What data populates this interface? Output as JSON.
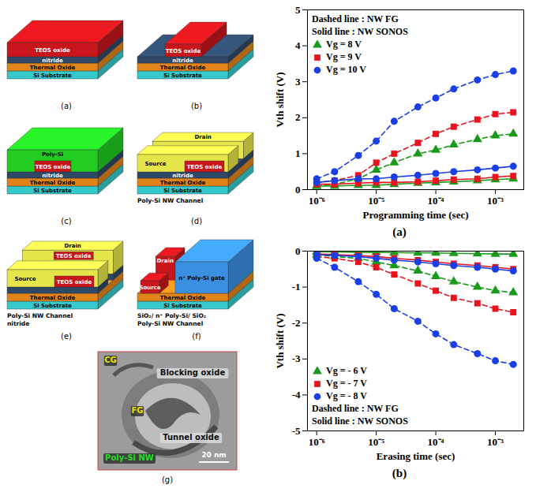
{
  "diagram": {
    "panels": [
      {
        "caption": "(a)",
        "layers": [
          {
            "text": "Si Substrate",
            "color": "#35c9cc"
          },
          {
            "text": "Thermal Oxide",
            "color": "#e0841a"
          },
          {
            "text": "nitride",
            "color": "#2e4868"
          },
          {
            "text": "TEOS oxide",
            "color": "#c8161c"
          }
        ],
        "blocks": [],
        "callouts": []
      },
      {
        "caption": "(b)",
        "layers": [
          {
            "text": "Si Substrate",
            "color": "#35c9cc"
          },
          {
            "text": "Thermal Oxide",
            "color": "#e0841a"
          },
          {
            "text": "nitride",
            "color": "#2e4868"
          }
        ],
        "blocks": [
          {
            "text": "TEOS oxide",
            "color": "#c8161c"
          }
        ],
        "callouts": []
      },
      {
        "caption": "(c)",
        "layers": [
          {
            "text": "Si Substrate",
            "color": "#35c9cc"
          },
          {
            "text": "Thermal Oxide",
            "color": "#e0841a"
          },
          {
            "text": "nitride",
            "color": "#2e4868"
          }
        ],
        "blocks": [
          {
            "text": "Poly-Si",
            "color": "#22cc22"
          },
          {
            "text": "TEOS oxide",
            "color": "#c8161c"
          }
        ],
        "callouts": []
      },
      {
        "caption": "(d)",
        "layers": [
          {
            "text": "Si Substrate",
            "color": "#35c9cc"
          },
          {
            "text": "Thermal Oxide",
            "color": "#e0841a"
          },
          {
            "text": "nitride",
            "color": "#2e4868"
          }
        ],
        "blocks": [
          {
            "text": "Drain",
            "color": "#e6e64a"
          },
          {
            "text": "Source",
            "color": "#e6e64a"
          },
          {
            "text": "TEOS oxide",
            "color": "#c8161c"
          }
        ],
        "callouts": [
          "Poly-Si NW Channel"
        ]
      },
      {
        "caption": "(e)",
        "layers": [
          {
            "text": "Si Substrate",
            "color": "#35c9cc"
          },
          {
            "text": "Thermal Oxide",
            "color": "#e0841a"
          }
        ],
        "blocks": [
          {
            "text": "Drain",
            "color": "#e6e64a"
          },
          {
            "text": "TEOS oxide",
            "color": "#c8161c"
          },
          {
            "text": "Source",
            "color": "#e6e64a"
          },
          {
            "text": "TEOS oxide",
            "color": "#c8161c"
          }
        ],
        "callouts": [
          "Poly-Si NW Channel",
          "nitride"
        ]
      },
      {
        "caption": "(f)",
        "layers": [
          {
            "text": "Si Substrate",
            "color": "#35c9cc"
          },
          {
            "text": "Thermal Oxide",
            "color": "#e0841a"
          }
        ],
        "blocks": [
          {
            "text": "n⁺ Poly-Si gate",
            "color": "#3a8fe0"
          },
          {
            "text": "Drain",
            "color": "#c8161c"
          },
          {
            "text": "Source",
            "color": "#c8161c"
          }
        ],
        "callouts": [
          "SiO₂/ n⁺ Poly-Si/ SiO₂",
          "Poly-Si NW Channel"
        ]
      }
    ],
    "tem_image": {
      "caption": "(g)",
      "labels": [
        {
          "text": "CG",
          "color": "#e8e000"
        },
        {
          "text": "Blocking oxide",
          "color": "#111111"
        },
        {
          "text": "FG",
          "color": "#e8e000"
        },
        {
          "text": "Tunnel oxide",
          "color": "#111111"
        },
        {
          "text": "Poly-Si NW",
          "color": "#22dd22"
        }
      ],
      "scale_bar": "20 nm"
    }
  },
  "chart_data": [
    {
      "type": "line",
      "caption": "(a)",
      "x_label": "Programming time (sec)",
      "y_label": "Vth shift (V)",
      "log": "x",
      "x": [
        1e-06,
        2e-06,
        5e-06,
        1e-05,
        2e-05,
        5e-05,
        0.0001,
        0.0002,
        0.0005,
        0.001,
        0.002
      ],
      "xlim": [
        7e-07,
        0.003
      ],
      "xticks": [
        {
          "value": 1e-06,
          "label": "10⁻⁶"
        },
        {
          "value": 1e-05,
          "label": "10⁻⁵"
        },
        {
          "value": 0.0001,
          "label": "10⁻⁴"
        },
        {
          "value": 0.001,
          "label": "10⁻³"
        }
      ],
      "ylim": [
        0,
        5
      ],
      "yticks": [
        0,
        1,
        2,
        3,
        4,
        5
      ],
      "legend": "top-left",
      "annotations": [
        "Dashed line : NW FG",
        "Solid line : NW SONOS"
      ],
      "series": [
        {
          "name": "Vg = 8 V",
          "color": "#1a9a1a",
          "marker": "triangle",
          "line_style": "dashed",
          "values": [
            0.1,
            0.15,
            0.3,
            0.55,
            0.75,
            1.0,
            1.1,
            1.25,
            1.4,
            1.5,
            1.55
          ]
        },
        {
          "name": "Vg = 9 V",
          "color": "#e8141e",
          "marker": "square",
          "line_style": "dashed",
          "values": [
            0.2,
            0.25,
            0.4,
            0.75,
            1.0,
            1.3,
            1.55,
            1.75,
            1.95,
            2.1,
            2.15
          ]
        },
        {
          "name": "Vg = 10 V",
          "color": "#1a3ee8",
          "marker": "circle",
          "line_style": "dashed",
          "values": [
            0.3,
            0.5,
            0.95,
            1.35,
            1.9,
            2.3,
            2.55,
            2.8,
            3.05,
            3.2,
            3.3
          ]
        },
        {
          "name": "Vg = 8 V",
          "color": "#1a9a1a",
          "marker": "triangle",
          "line_style": "solid",
          "values": [
            0.1,
            0.1,
            0.12,
            0.12,
            0.15,
            0.18,
            0.2,
            0.22,
            0.25,
            0.28,
            0.3
          ]
        },
        {
          "name": "Vg = 9 V",
          "color": "#e8141e",
          "marker": "square",
          "line_style": "solid",
          "values": [
            0.15,
            0.15,
            0.18,
            0.2,
            0.2,
            0.22,
            0.25,
            0.28,
            0.3,
            0.35,
            0.38
          ]
        },
        {
          "name": "Vg = 10 V",
          "color": "#1a3ee8",
          "marker": "circle",
          "line_style": "solid",
          "values": [
            0.2,
            0.25,
            0.3,
            0.3,
            0.35,
            0.4,
            0.45,
            0.5,
            0.55,
            0.6,
            0.65
          ]
        }
      ]
    },
    {
      "type": "line",
      "caption": "(b)",
      "x_label": "Erasing time (sec)",
      "y_label": "Vth shift (V)",
      "log": "x",
      "x": [
        1e-06,
        2e-06,
        5e-06,
        1e-05,
        2e-05,
        5e-05,
        0.0001,
        0.0002,
        0.0005,
        0.001,
        0.002
      ],
      "xlim": [
        7e-07,
        0.003
      ],
      "xticks": [
        {
          "value": 1e-06,
          "label": "10⁻⁶"
        },
        {
          "value": 1e-05,
          "label": "10⁻⁵"
        },
        {
          "value": 0.0001,
          "label": "10⁻⁴"
        },
        {
          "value": 0.001,
          "label": "10⁻³"
        }
      ],
      "ylim": [
        -5,
        0
      ],
      "yticks": [
        0,
        -1,
        -2,
        -3,
        -4,
        -5
      ],
      "legend": "bottom-left",
      "annotations": [
        "Dashed line : NW FG",
        "Solid line : NW SONOS"
      ],
      "series": [
        {
          "name": "Vg = - 6 V",
          "color": "#1a9a1a",
          "marker": "triangle",
          "line_style": "dashed",
          "values": [
            -0.1,
            -0.15,
            -0.2,
            -0.3,
            -0.4,
            -0.55,
            -0.7,
            -0.85,
            -1.0,
            -1.1,
            -1.15
          ]
        },
        {
          "name": "Vg = - 7 V",
          "color": "#e8141e",
          "marker": "square",
          "line_style": "dashed",
          "values": [
            -0.15,
            -0.2,
            -0.3,
            -0.45,
            -0.65,
            -0.9,
            -1.1,
            -1.3,
            -1.45,
            -1.6,
            -1.7
          ]
        },
        {
          "name": "Vg = - 8 V",
          "color": "#1a3ee8",
          "marker": "circle",
          "line_style": "dashed",
          "values": [
            -0.2,
            -0.45,
            -0.85,
            -1.2,
            -1.6,
            -1.95,
            -2.3,
            -2.6,
            -2.85,
            -3.05,
            -3.15
          ]
        },
        {
          "name": "Vg = - 6 V",
          "color": "#1a9a1a",
          "marker": "triangle",
          "line_style": "solid",
          "values": [
            -0.02,
            -0.02,
            -0.03,
            -0.03,
            -0.04,
            -0.05,
            -0.05,
            -0.06,
            -0.07,
            -0.08,
            -0.08
          ]
        },
        {
          "name": "Vg = - 7 V",
          "color": "#e8141e",
          "marker": "square",
          "line_style": "solid",
          "values": [
            -0.08,
            -0.1,
            -0.12,
            -0.15,
            -0.2,
            -0.25,
            -0.3,
            -0.35,
            -0.4,
            -0.45,
            -0.5
          ]
        },
        {
          "name": "Vg = - 8 V",
          "color": "#1a3ee8",
          "marker": "circle",
          "line_style": "solid",
          "values": [
            -0.1,
            -0.12,
            -0.15,
            -0.2,
            -0.25,
            -0.3,
            -0.35,
            -0.4,
            -0.45,
            -0.5,
            -0.55
          ]
        }
      ]
    }
  ]
}
